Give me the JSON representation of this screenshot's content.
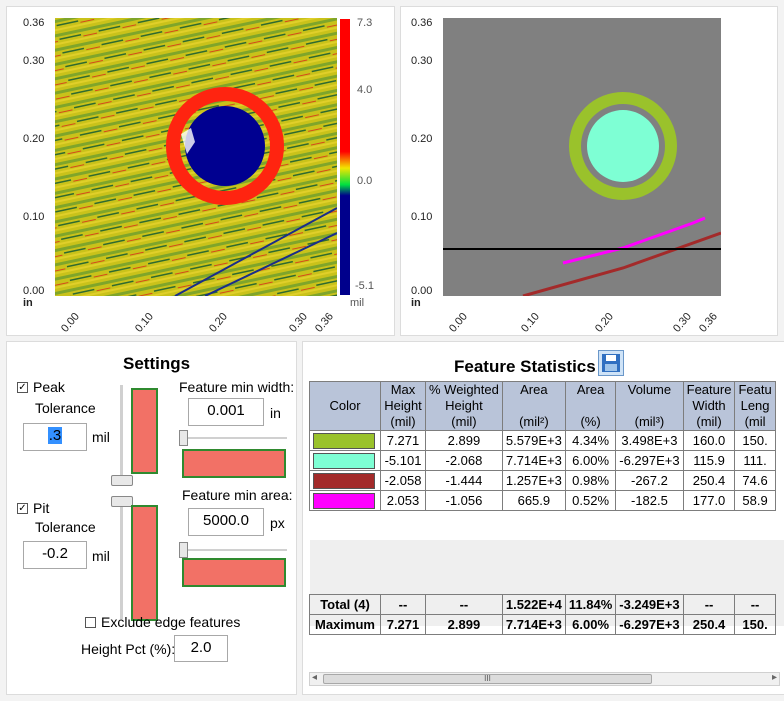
{
  "height_map": {
    "y_ticks": [
      "0.36",
      "0.30",
      "0.20",
      "0.10",
      "0.00"
    ],
    "x_ticks": [
      "0.00",
      "0.10",
      "0.20",
      "0.30",
      "0.36"
    ],
    "x_unit": "in",
    "colorbar_ticks": [
      "7.3",
      "4.0",
      "0.0",
      "-5.1"
    ],
    "colorbar_unit": "mil",
    "colors": {
      "peak": "#ff1a00",
      "mid": "#f2e600",
      "low": "#00ff40",
      "pit": "#00008c"
    }
  },
  "feature_map": {
    "y_ticks": [
      "0.36",
      "0.30",
      "0.20",
      "0.10",
      "0.00"
    ],
    "x_ticks": [
      "0.00",
      "0.10",
      "0.20",
      "0.30",
      "0.36"
    ],
    "x_unit": "in"
  },
  "settings": {
    "title": "Settings",
    "peak_label_1": "Peak",
    "peak_label_2": "Tolerance",
    "peak_value": ".3",
    "peak_unit": "mil",
    "pit_label_1": "Pit",
    "pit_label_2": "Tolerance",
    "pit_value": "-0.2",
    "pit_unit": "mil",
    "min_width_label": "Feature min width:",
    "min_width_value": "0.001",
    "min_width_unit": "in",
    "min_area_label": "Feature min area:",
    "min_area_value": "5000.0",
    "min_area_unit": "px",
    "exclude_edge_label": "Exclude edge features",
    "height_pct_label": "Height Pct (%):",
    "height_pct_value": "2.0"
  },
  "stats": {
    "title": "Feature Statistics",
    "headers": [
      [
        "Color"
      ],
      [
        "Max",
        "Height",
        "(mil)"
      ],
      [
        "% Weighted",
        "Height",
        "(mil)"
      ],
      [
        "Area",
        "",
        "(mil²)"
      ],
      [
        "Area",
        "",
        "(%)"
      ],
      [
        "Volume",
        "",
        "(mil³)"
      ],
      [
        "Feature",
        "Width",
        "(mil)"
      ],
      [
        "Featu",
        "Leng",
        "(mil"
      ]
    ],
    "rows": [
      {
        "color": "#9ac22b",
        "cells": [
          "7.271",
          "2.899",
          "5.579E+3",
          "4.34%",
          "3.498E+3",
          "160.0",
          "150."
        ]
      },
      {
        "color": "#7effd4",
        "cells": [
          "-5.101",
          "-2.068",
          "7.714E+3",
          "6.00%",
          "-6.297E+3",
          "115.9",
          "111."
        ]
      },
      {
        "color": "#a32a2a",
        "cells": [
          "-2.058",
          "-1.444",
          "1.257E+3",
          "0.98%",
          "-267.2",
          "250.4",
          "74.6"
        ]
      },
      {
        "color": "#ff00ff",
        "cells": [
          "2.053",
          "-1.056",
          "665.9",
          "0.52%",
          "-182.5",
          "177.0",
          "58.9"
        ]
      }
    ],
    "total": [
      "Total (4)",
      "--",
      "--",
      "1.522E+4",
      "11.84%",
      "-3.249E+3",
      "--",
      "--"
    ],
    "maximum": [
      "Maximum",
      "7.271",
      "2.899",
      "7.714E+3",
      "6.00%",
      "-6.297E+3",
      "250.4",
      "150."
    ],
    "scroll_mark": "III"
  }
}
